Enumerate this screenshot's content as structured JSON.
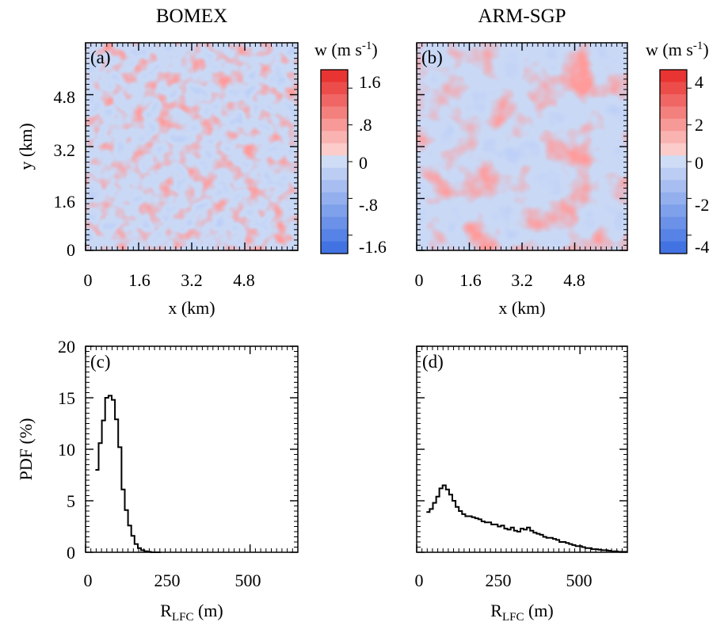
{
  "chart_data": [
    {
      "id": "a",
      "type": "heatmap",
      "title": "BOMEX",
      "panel_label": "(a)",
      "xlabel": "x (km)",
      "ylabel": "y (km)",
      "xlim": [
        0,
        6.4
      ],
      "ylim": [
        0,
        6.4
      ],
      "xticks": [
        0,
        1.6,
        3.2,
        4.8
      ],
      "xtick_labels": [
        "0",
        "1.6",
        "3.2",
        "4.8"
      ],
      "yticks": [
        0,
        1.6,
        3.2,
        4.8
      ],
      "ytick_labels": [
        "0",
        "1.6",
        "3.2",
        "4.8"
      ],
      "colorbar": {
        "title": "w (m s",
        "title_sup": "-1",
        "title_end": ")",
        "range": [
          -2,
          2
        ],
        "tick_values": [
          1.6,
          0.8,
          0,
          -0.8,
          -1.6
        ],
        "tick_labels": [
          "1.6",
          ".8",
          "0",
          "-.8",
          "-1.6"
        ],
        "colors": [
          "#e83432",
          "#ec4d4b",
          "#f06664",
          "#f4807e",
          "#f79997",
          "#f9b3b1",
          "#fcccca",
          "#cfdcf6",
          "#bccdf4",
          "#a8bef1",
          "#94afee",
          "#7fa0eb",
          "#6b91e8",
          "#5782e6",
          "#4373e3"
        ]
      },
      "field_colors": {
        "positive": "#e83432",
        "negative": "#4373e3",
        "neutral": "#c9d8f5"
      }
    },
    {
      "id": "b",
      "type": "heatmap",
      "title": "ARM-SGP",
      "panel_label": "(b)",
      "xlabel": "x (km)",
      "ylabel": "",
      "xlim": [
        0,
        6.4
      ],
      "ylim": [
        0,
        6.4
      ],
      "xticks": [
        0,
        1.6,
        3.2,
        4.8
      ],
      "xtick_labels": [
        "0",
        "1.6",
        "3.2",
        "4.8"
      ],
      "yticks": [
        0,
        1.6,
        3.2,
        4.8
      ],
      "colorbar": {
        "title": "w (m s",
        "title_sup": "-1",
        "title_end": ")",
        "range": [
          -5,
          5
        ],
        "tick_values": [
          4,
          2,
          0,
          -2,
          -4
        ],
        "tick_labels": [
          "4",
          "2",
          "0",
          "-2",
          "-4"
        ],
        "colors": [
          "#e83432",
          "#ec4d4b",
          "#f06664",
          "#f4807e",
          "#f79997",
          "#f9b3b1",
          "#fcccca",
          "#cfdcf6",
          "#bccdf4",
          "#a8bef1",
          "#94afee",
          "#7fa0eb",
          "#6b91e8",
          "#5782e6",
          "#4373e3"
        ]
      },
      "field_colors": {
        "positive": "#e83432",
        "negative": "#4373e3",
        "neutral": "#c9d8f5"
      }
    },
    {
      "id": "c",
      "type": "line",
      "style": "step",
      "panel_label": "(c)",
      "xlabel": "R",
      "xlabel_sub": "LFC",
      "xlabel_end": " (m)",
      "ylabel": "PDF (%)",
      "xlim": [
        0,
        650
      ],
      "ylim": [
        0,
        20
      ],
      "xticks": [
        0,
        250,
        500
      ],
      "xtick_labels": [
        "0",
        "250",
        "500"
      ],
      "yticks": [
        0,
        5,
        10,
        15,
        20
      ],
      "ytick_labels": [
        "0",
        "5",
        "10",
        "15",
        "20"
      ],
      "bin_width": 10,
      "x": [
        30,
        40,
        50,
        60,
        70,
        80,
        90,
        100,
        110,
        120,
        130,
        140,
        150,
        160,
        170,
        180,
        190,
        200,
        210,
        220
      ],
      "values": [
        8.0,
        10.6,
        12.8,
        15.0,
        15.2,
        14.8,
        12.9,
        10.2,
        6.1,
        4.1,
        2.6,
        1.6,
        0.8,
        0.4,
        0.2,
        0.1,
        0.05,
        0.0,
        0.0,
        0.0
      ]
    },
    {
      "id": "d",
      "type": "line",
      "style": "step",
      "panel_label": "(d)",
      "xlabel": "R",
      "xlabel_sub": "LFC",
      "xlabel_end": " (m)",
      "ylabel": "",
      "xlim": [
        0,
        650
      ],
      "ylim": [
        0,
        20
      ],
      "xticks": [
        0,
        250,
        500
      ],
      "xtick_labels": [
        "0",
        "250",
        "500"
      ],
      "yticks": [
        0,
        5,
        10,
        15,
        20
      ],
      "bin_width": 10,
      "x": [
        30,
        40,
        50,
        60,
        70,
        80,
        90,
        100,
        110,
        120,
        130,
        140,
        150,
        160,
        170,
        180,
        190,
        200,
        210,
        220,
        230,
        240,
        250,
        260,
        270,
        280,
        290,
        300,
        310,
        320,
        330,
        340,
        350,
        360,
        370,
        380,
        390,
        400,
        410,
        420,
        430,
        440,
        450,
        460,
        470,
        480,
        490,
        500,
        510,
        520,
        530,
        540,
        550,
        560,
        570,
        580,
        590,
        600,
        610,
        620,
        630,
        640
      ],
      "values": [
        3.9,
        4.2,
        4.8,
        5.4,
        6.2,
        6.5,
        6.1,
        5.6,
        5.0,
        4.4,
        4.0,
        3.7,
        3.5,
        3.5,
        3.4,
        3.3,
        3.2,
        3.0,
        2.9,
        2.9,
        2.7,
        2.7,
        2.5,
        2.6,
        2.3,
        2.2,
        2.4,
        2.1,
        2.0,
        2.3,
        2.2,
        2.4,
        2.1,
        1.9,
        1.8,
        1.7,
        1.5,
        1.4,
        1.4,
        1.3,
        1.2,
        1.0,
        1.0,
        0.9,
        0.8,
        0.7,
        0.6,
        0.6,
        0.5,
        0.4,
        0.4,
        0.3,
        0.3,
        0.25,
        0.2,
        0.2,
        0.15,
        0.1,
        0.1,
        0.05,
        0.05,
        0.05
      ]
    }
  ]
}
